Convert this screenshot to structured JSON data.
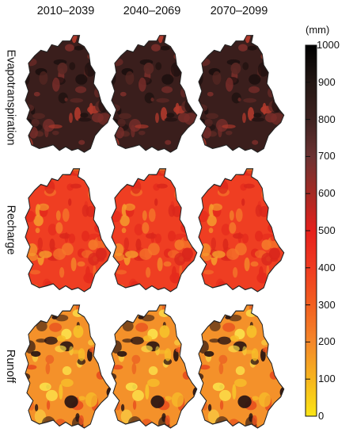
{
  "columns": [
    "2010–2039",
    "2040–2069",
    "2070–2099"
  ],
  "rows": [
    "Evapotranspiration",
    "Recharge",
    "Runoff"
  ],
  "colorbar": {
    "unit": "(mm)",
    "ticks": [
      "1000",
      "900",
      "800",
      "700",
      "600",
      "500",
      "400",
      "300",
      "200",
      "100",
      "0"
    ],
    "colors": [
      "#000000",
      "#231714",
      "#3e2220",
      "#6b3232",
      "#a52a24",
      "#e5201c",
      "#ef3b21",
      "#f25f1f",
      "#f4872a",
      "#f6b51e",
      "#fbe515"
    ]
  },
  "maps": {
    "Evapotranspiration": {
      "base": "#3a1e1c",
      "accents": [
        "#7a2e2a",
        "#5b2824",
        "#1b0f0e",
        "#b23a2c"
      ]
    },
    "Recharge": {
      "base": "#ef3e22",
      "accents": [
        "#f5772a",
        "#e42a1c",
        "#f59a2c",
        "#d9261b"
      ]
    },
    "Runoff": {
      "base": "#f4912a",
      "accents": [
        "#f7c02a",
        "#e8501f",
        "#fbe04a",
        "#2a1512"
      ]
    }
  }
}
